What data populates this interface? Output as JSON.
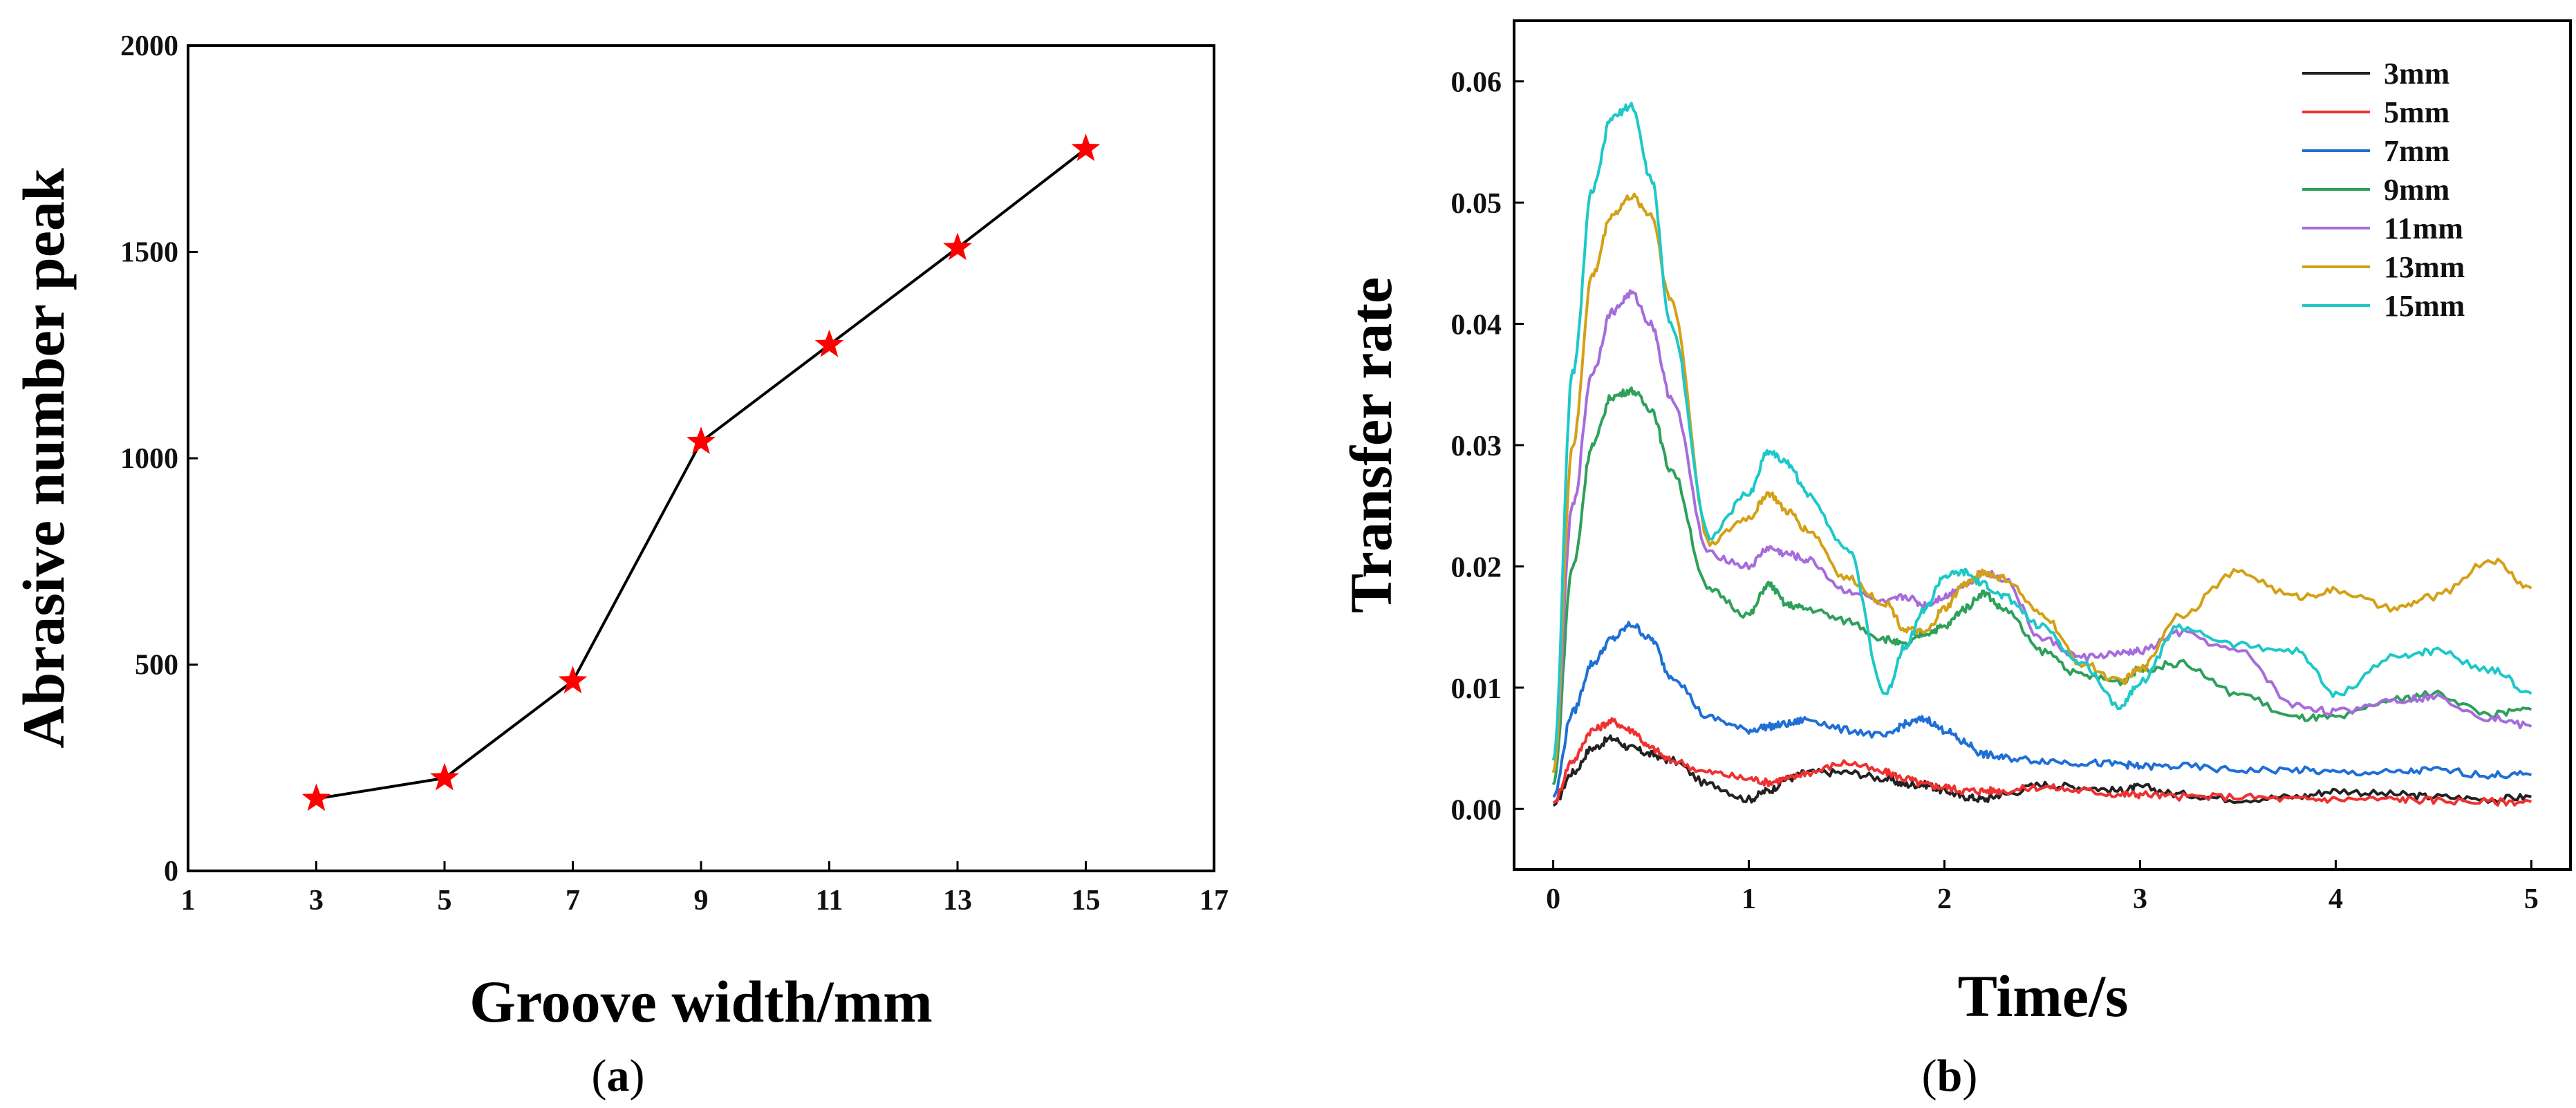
{
  "chart_data": [
    {
      "type": "line",
      "panel_label": "a",
      "xlabel": "Groove width/mm",
      "ylabel": "Abrasive number peak",
      "xlim": [
        1,
        17
      ],
      "ylim": [
        0,
        2000
      ],
      "xticks": [
        1,
        3,
        5,
        7,
        9,
        11,
        13,
        15,
        17
      ],
      "yticks": [
        0,
        500,
        1000,
        1500,
        2000
      ],
      "series": [
        {
          "name": "Abrasive number peak",
          "color": "#000000",
          "marker": "star",
          "marker_color": "#ff0000",
          "x": [
            3,
            5,
            7,
            9,
            11,
            13,
            15
          ],
          "y": [
            175,
            225,
            460,
            1040,
            1275,
            1510,
            1750
          ]
        }
      ]
    },
    {
      "type": "line",
      "panel_label": "b",
      "xlabel": "Time/s",
      "ylabel": "Transfer rate",
      "xlim": [
        -0.2,
        5.2
      ],
      "ylim": [
        -0.005,
        0.065
      ],
      "xticks": [
        0,
        1,
        2,
        3,
        4,
        5
      ],
      "yticks": [
        "0.00",
        "0.01",
        "0.02",
        "0.03",
        "0.04",
        "0.05",
        "0.06"
      ],
      "legend_position": "top-right",
      "x": [
        0,
        0.1,
        0.2,
        0.3,
        0.4,
        0.5,
        0.6,
        0.8,
        1.0,
        1.1,
        1.2,
        1.3,
        1.5,
        1.7,
        1.8,
        1.9,
        2.0,
        2.1,
        2.2,
        2.3,
        2.5,
        2.7,
        2.9,
        3.0,
        3.2,
        3.5,
        3.8,
        4.0,
        4.3,
        4.5,
        4.8,
        5.0
      ],
      "series": [
        {
          "name": "3mm",
          "color": "#222222",
          "values": [
            0.0003,
            0.003,
            0.005,
            0.0058,
            0.005,
            0.0045,
            0.004,
            0.002,
            0.0008,
            0.0015,
            0.0025,
            0.003,
            0.003,
            0.0025,
            0.002,
            0.002,
            0.0015,
            0.001,
            0.0008,
            0.0012,
            0.002,
            0.0018,
            0.0015,
            0.0018,
            0.0012,
            0.0008,
            0.001,
            0.0015,
            0.0012,
            0.001,
            0.0008,
            0.001
          ]
        },
        {
          "name": "5mm",
          "color": "#f03030",
          "values": [
            0.0005,
            0.004,
            0.0065,
            0.0072,
            0.0065,
            0.005,
            0.004,
            0.003,
            0.0025,
            0.0022,
            0.0025,
            0.003,
            0.0038,
            0.003,
            0.0025,
            0.002,
            0.0018,
            0.0015,
            0.0015,
            0.0015,
            0.0018,
            0.0015,
            0.0012,
            0.0012,
            0.001,
            0.001,
            0.0008,
            0.0008,
            0.0008,
            0.0007,
            0.0006,
            0.0006
          ]
        },
        {
          "name": "7mm",
          "color": "#1f6fd6",
          "values": [
            0.001,
            0.008,
            0.012,
            0.014,
            0.0152,
            0.014,
            0.011,
            0.0075,
            0.0065,
            0.0068,
            0.007,
            0.0074,
            0.0065,
            0.006,
            0.007,
            0.0074,
            0.0065,
            0.0055,
            0.0045,
            0.0042,
            0.004,
            0.0038,
            0.0037,
            0.0035,
            0.0035,
            0.0032,
            0.0032,
            0.003,
            0.003,
            0.0032,
            0.0028,
            0.0028
          ]
        },
        {
          "name": "9mm",
          "color": "#2ea05a",
          "values": [
            0.002,
            0.02,
            0.03,
            0.034,
            0.0345,
            0.033,
            0.028,
            0.018,
            0.016,
            0.0185,
            0.0168,
            0.0165,
            0.0155,
            0.014,
            0.0135,
            0.0145,
            0.015,
            0.0165,
            0.0178,
            0.0165,
            0.013,
            0.011,
            0.0105,
            0.0115,
            0.012,
            0.0095,
            0.0075,
            0.0075,
            0.009,
            0.0095,
            0.0078,
            0.0082
          ]
        },
        {
          "name": "11mm",
          "color": "#a66cdc",
          "values": [
            0.003,
            0.025,
            0.036,
            0.041,
            0.0425,
            0.04,
            0.034,
            0.021,
            0.02,
            0.0215,
            0.021,
            0.0205,
            0.018,
            0.017,
            0.0175,
            0.0168,
            0.0175,
            0.0185,
            0.0195,
            0.019,
            0.014,
            0.0125,
            0.0128,
            0.013,
            0.0145,
            0.013,
            0.0085,
            0.008,
            0.009,
            0.0092,
            0.0075,
            0.0068
          ]
        },
        {
          "name": "13mm",
          "color": "#d4a017",
          "values": [
            0.003,
            0.03,
            0.044,
            0.049,
            0.0505,
            0.049,
            0.042,
            0.022,
            0.024,
            0.026,
            0.0245,
            0.023,
            0.019,
            0.017,
            0.0148,
            0.0145,
            0.0165,
            0.0185,
            0.0195,
            0.019,
            0.016,
            0.012,
            0.0105,
            0.0115,
            0.016,
            0.0195,
            0.0175,
            0.018,
            0.0165,
            0.0175,
            0.0205,
            0.0182
          ]
        },
        {
          "name": "15mm",
          "color": "#1ec8c8",
          "values": [
            0.004,
            0.036,
            0.051,
            0.057,
            0.058,
            0.052,
            0.04,
            0.0225,
            0.026,
            0.0295,
            0.0285,
            0.026,
            0.0215,
            0.0095,
            0.0135,
            0.0165,
            0.0192,
            0.0195,
            0.0185,
            0.0175,
            0.015,
            0.012,
            0.0085,
            0.0105,
            0.015,
            0.0135,
            0.013,
            0.0095,
            0.0125,
            0.013,
            0.0115,
            0.0095
          ]
        }
      ]
    }
  ]
}
